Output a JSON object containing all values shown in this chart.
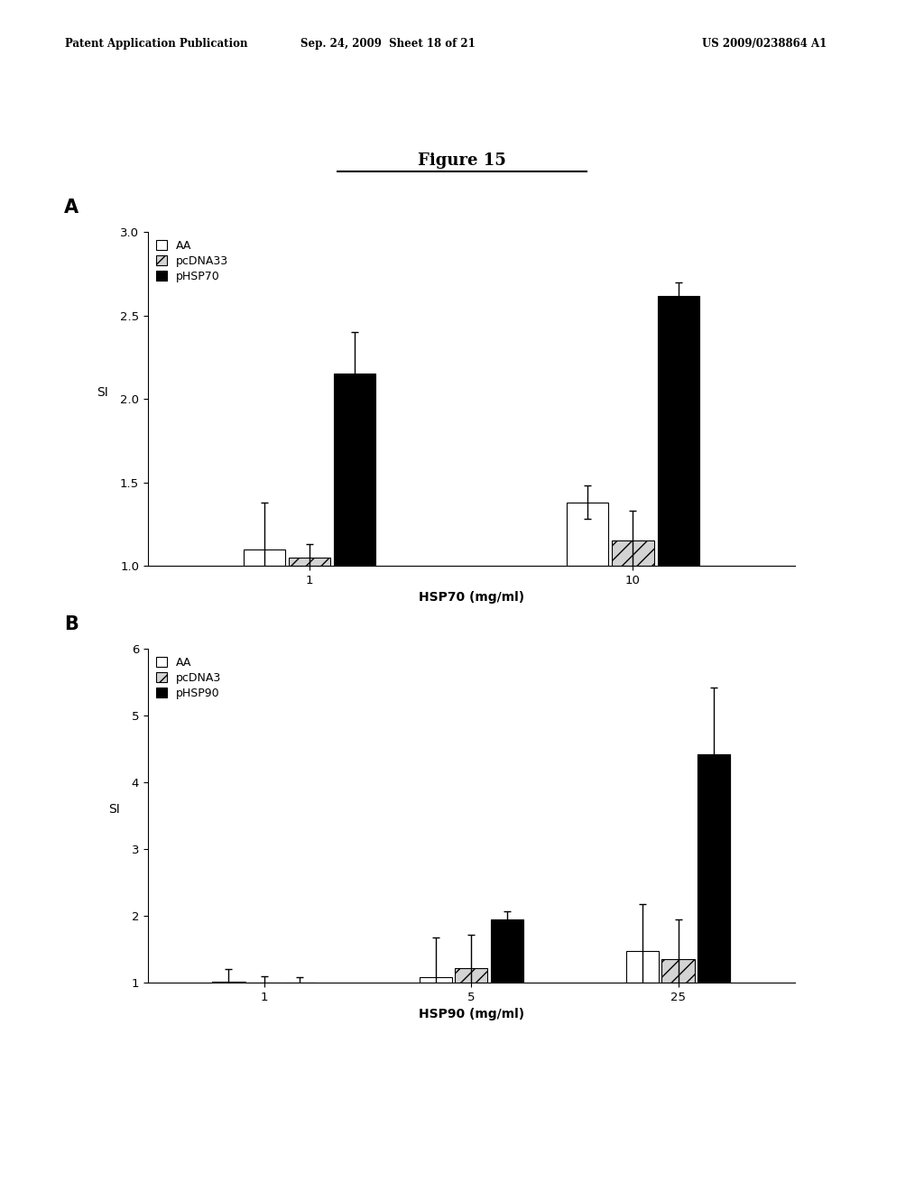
{
  "header_left": "Patent Application Publication",
  "header_center": "Sep. 24, 2009  Sheet 18 of 21",
  "header_right": "US 2009/0238864 A1",
  "figure_title": "Figure 15",
  "panel_A": {
    "label": "A",
    "xlabel": "HSP70 (mg/ml)",
    "ylabel": "SI",
    "ylim": [
      1,
      3
    ],
    "yticks": [
      1,
      1.5,
      2,
      2.5,
      3
    ],
    "x_groups": [
      "1",
      "10"
    ],
    "legend_labels": [
      "AA",
      "pcDNA33",
      "pHSP70"
    ],
    "bar_colors": [
      "white",
      "lightgray",
      "black"
    ],
    "bar_patterns": [
      "",
      "//",
      ""
    ],
    "bar_width": 0.07,
    "group_centers": [
      0.25,
      0.75
    ],
    "values": [
      [
        1.1,
        1.05,
        2.15
      ],
      [
        1.38,
        1.15,
        2.62
      ]
    ],
    "errors": [
      [
        0.28,
        0.08,
        0.25
      ],
      [
        0.1,
        0.18,
        0.08
      ]
    ]
  },
  "panel_B": {
    "label": "B",
    "xlabel": "HSP90 (mg/ml)",
    "ylabel": "SI",
    "ylim": [
      1,
      6
    ],
    "yticks": [
      1,
      2,
      3,
      4,
      5,
      6
    ],
    "x_groups": [
      "1",
      "5",
      "25"
    ],
    "legend_labels": [
      "AA",
      "pcDNA3",
      "pHSP90"
    ],
    "bar_colors": [
      "white",
      "lightgray",
      "black"
    ],
    "bar_patterns": [
      "",
      "//",
      ""
    ],
    "bar_width": 0.055,
    "group_centers": [
      0.18,
      0.5,
      0.82
    ],
    "values": [
      [
        1.02,
        1.0,
        1.0
      ],
      [
        1.08,
        1.22,
        1.95
      ],
      [
        1.48,
        1.35,
        4.42
      ]
    ],
    "errors": [
      [
        0.18,
        0.1,
        0.08
      ],
      [
        0.6,
        0.5,
        0.12
      ],
      [
        0.7,
        0.6,
        1.0
      ]
    ]
  },
  "background_color": "white",
  "text_color": "black",
  "header_fontsize": 8.5,
  "title_fontsize": 13,
  "axis_fontsize": 10,
  "tick_fontsize": 9.5,
  "legend_fontsize": 9,
  "panel_label_fontsize": 15
}
